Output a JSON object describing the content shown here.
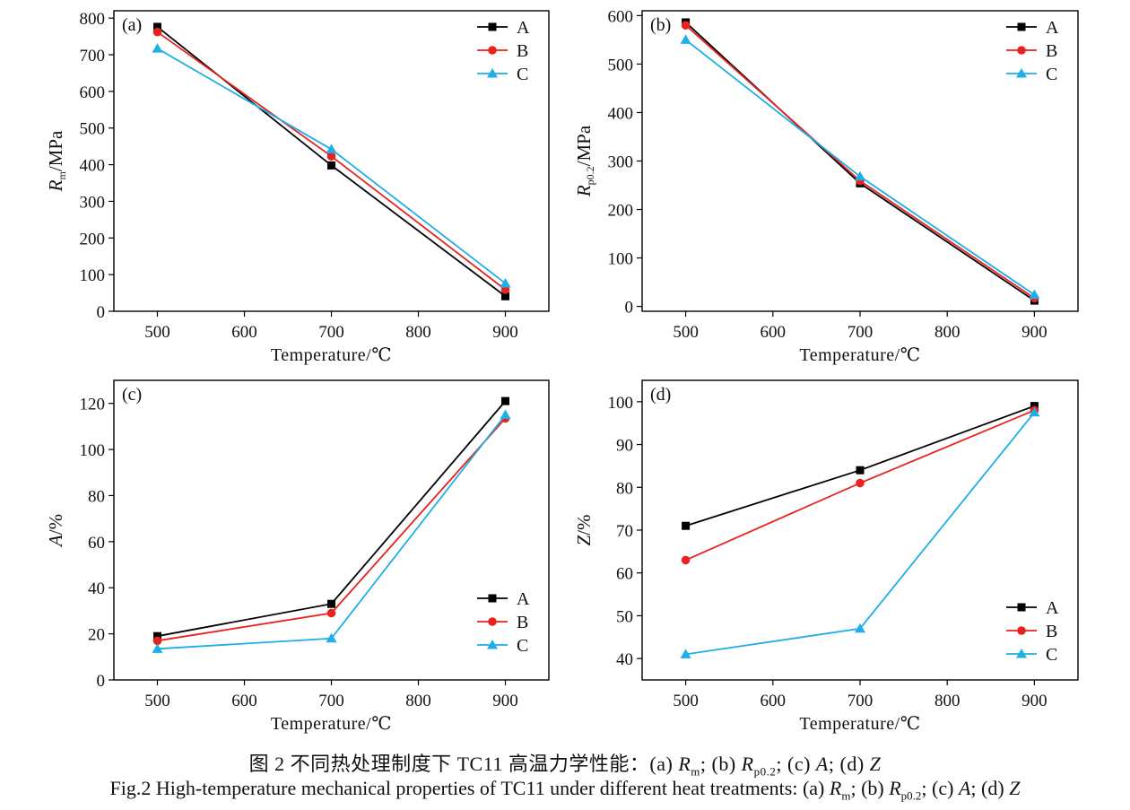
{
  "colors": {
    "A": "#000000",
    "B": "#e8231f",
    "C": "#1eaee8"
  },
  "panels": [
    {
      "label": "(a)",
      "ylabel_main": "R",
      "ylabel_sub": "m",
      "ylabel_rest": "/MPa",
      "legend": [
        "A",
        "B",
        "C"
      ]
    },
    {
      "label": "(b)",
      "ylabel_main": "R",
      "ylabel_sub": "p0.2",
      "ylabel_rest": "/MPa",
      "legend": [
        "A",
        "B",
        "C"
      ]
    },
    {
      "label": "(c)",
      "ylabel_main": "A",
      "ylabel_sub": "",
      "ylabel_rest": "/%",
      "legend": [
        "A",
        "B",
        "C"
      ]
    },
    {
      "label": "(d)",
      "ylabel_main": "Z",
      "ylabel_sub": "",
      "ylabel_rest": "/%",
      "legend": [
        "A",
        "B",
        "C"
      ]
    }
  ],
  "chart_data": [
    {
      "type": "line",
      "panel": "(a)",
      "xlabel": "Temperature/℃",
      "ylabel": "Rm/MPa",
      "xlim": [
        450,
        950
      ],
      "ylim": [
        0,
        820
      ],
      "xticks": [
        500,
        600,
        700,
        800,
        900
      ],
      "yticks": [
        0,
        100,
        200,
        300,
        400,
        500,
        600,
        700,
        800
      ],
      "x": [
        500,
        700,
        900
      ],
      "series": [
        {
          "name": "A",
          "marker": "square",
          "values": [
            776,
            398,
            41
          ]
        },
        {
          "name": "B",
          "marker": "circle",
          "values": [
            762,
            423,
            59
          ]
        },
        {
          "name": "C",
          "marker": "triangle",
          "values": [
            717,
            442,
            76
          ]
        }
      ],
      "legend_position": "top-right"
    },
    {
      "type": "line",
      "panel": "(b)",
      "xlabel": "Temperature/℃",
      "ylabel": "Rp0.2/MPa",
      "xlim": [
        450,
        950
      ],
      "ylim": [
        -10,
        610
      ],
      "xticks": [
        500,
        600,
        700,
        800,
        900
      ],
      "yticks": [
        0,
        100,
        200,
        300,
        400,
        500,
        600
      ],
      "x": [
        500,
        700,
        900
      ],
      "series": [
        {
          "name": "A",
          "marker": "square",
          "values": [
            586,
            254,
            12
          ]
        },
        {
          "name": "B",
          "marker": "circle",
          "values": [
            580,
            259,
            17
          ]
        },
        {
          "name": "C",
          "marker": "triangle",
          "values": [
            550,
            268,
            24
          ]
        }
      ],
      "legend_position": "top-right"
    },
    {
      "type": "line",
      "panel": "(c)",
      "xlabel": "Temperature/℃",
      "ylabel": "A/%",
      "xlim": [
        450,
        950
      ],
      "ylim": [
        0,
        130
      ],
      "xticks": [
        500,
        600,
        700,
        800,
        900
      ],
      "yticks": [
        0,
        20,
        40,
        60,
        80,
        100,
        120
      ],
      "x": [
        500,
        700,
        900
      ],
      "series": [
        {
          "name": "A",
          "marker": "square",
          "values": [
            19,
            33,
            121
          ]
        },
        {
          "name": "B",
          "marker": "circle",
          "values": [
            17,
            29,
            113.5
          ]
        },
        {
          "name": "C",
          "marker": "triangle",
          "values": [
            13.5,
            18,
            115
          ]
        }
      ],
      "legend_position": "bottom-right"
    },
    {
      "type": "line",
      "panel": "(d)",
      "xlabel": "Temperature/℃",
      "ylabel": "Z/%",
      "xlim": [
        450,
        950
      ],
      "ylim": [
        35,
        105
      ],
      "xticks": [
        500,
        600,
        700,
        800,
        900
      ],
      "yticks": [
        40,
        50,
        60,
        70,
        80,
        90,
        100
      ],
      "x": [
        500,
        700,
        900
      ],
      "series": [
        {
          "name": "A",
          "marker": "square",
          "values": [
            71,
            84,
            99
          ]
        },
        {
          "name": "B",
          "marker": "circle",
          "values": [
            63,
            81,
            98
          ]
        },
        {
          "name": "C",
          "marker": "triangle",
          "values": [
            41,
            47,
            97.5
          ]
        }
      ],
      "legend_position": "bottom-right"
    }
  ],
  "caption": {
    "cn_prefix": "图 2 不同热处理制度下 TC11 高温力学性能：",
    "en_prefix": "Fig.2 High-temperature mechanical properties of TC11 under different heat treatments: ",
    "parts": [
      {
        "label": "(a) ",
        "sym": "R",
        "sub": "m",
        "sep": "; "
      },
      {
        "label": "(b) ",
        "sym": "R",
        "sub": "p0.2",
        "sep": "; "
      },
      {
        "label": "(c) ",
        "sym": "A",
        "sub": "",
        "sep": "; "
      },
      {
        "label": "(d) ",
        "sym": "Z",
        "sub": "",
        "sep": ""
      }
    ]
  }
}
